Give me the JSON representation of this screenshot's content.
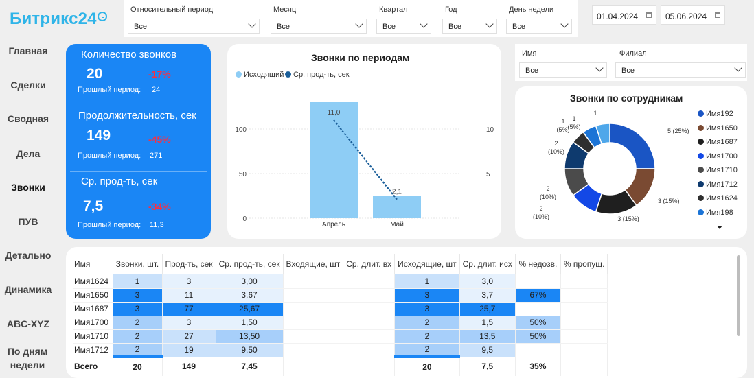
{
  "logo": "Битрикс24",
  "filters": [
    {
      "label": "Относительный период",
      "value": "Все"
    },
    {
      "label": "Месяц",
      "value": "Все"
    },
    {
      "label": "Квартал",
      "value": "Все"
    },
    {
      "label": "Год",
      "value": "Все"
    },
    {
      "label": "День недели",
      "value": "Все"
    }
  ],
  "date_from": "01.04.2024",
  "date_to": "05.06.2024",
  "nav": [
    "Главная",
    "Сделки",
    "Сводная",
    "Дела",
    "Звонки",
    "ПУВ",
    "Детально",
    "Динамика",
    "ABC-XYZ",
    "По дням недели"
  ],
  "nav_active": "Звонки",
  "kpi": [
    {
      "title": "Количество звонков",
      "value": "20",
      "change": "-17%",
      "prev_label": "Прошлый период:",
      "prev_value": "24"
    },
    {
      "title": "Продолжительность, сек",
      "value": "149",
      "change": "-45%",
      "prev_label": "Прошлый период:",
      "prev_value": "271"
    },
    {
      "title": "Ср. прод-ть, сек",
      "value": "7,5",
      "change": "-34%",
      "prev_label": "Прошлый период:",
      "prev_value": "11,3"
    }
  ],
  "chart_data": [
    {
      "type": "bar",
      "title": "Звонки по периодам",
      "categories": [
        "Апрель",
        "Май"
      ],
      "series": [
        {
          "name": "Исходящий",
          "values": [
            11.0,
            2.1
          ],
          "color": "#8ecdf5"
        },
        {
          "name": "Ср. прод-ть, сек",
          "values": [
            11.0,
            2.1
          ],
          "color": "#1a5e99"
        }
      ],
      "y_ticks": [
        "0",
        "50",
        "100"
      ],
      "y2_ticks": [
        "5",
        "10"
      ],
      "data_labels": [
        "11,0",
        "2,1"
      ],
      "legend": "top-left"
    },
    {
      "type": "pie",
      "title": "Звонки по сотрудникам",
      "slices": [
        {
          "name": "Имя192",
          "value": 5,
          "label": "5 (25%)",
          "color": "#1a55c4"
        },
        {
          "name": "Имя1650",
          "value": 3,
          "label": "3 (15%)",
          "color": "#7a4a32"
        },
        {
          "name": "Имя1687",
          "value": 3,
          "label": "3 (15%)",
          "color": "#1f1f1f"
        },
        {
          "name": "Имя1700",
          "value": 2,
          "label": "2 (10%)",
          "color": "#1348e6"
        },
        {
          "name": "Имя1710",
          "value": 2,
          "label": "2 (10%)",
          "color": "#4b4b4b"
        },
        {
          "name": "Имя1712",
          "value": 2,
          "label": "2 (10%)",
          "color": "#0e3a6e"
        },
        {
          "name": "Имя1624",
          "value": 1,
          "label": "1 (5%)",
          "color": "#2f2f2f"
        },
        {
          "name": "Имя198",
          "value": 1,
          "label": "1 (5%)",
          "color": "#1b74d6"
        },
        {
          "name": "",
          "value": 1,
          "label": "1",
          "color": "#4ea7ea"
        }
      ],
      "legend": "right"
    }
  ],
  "name_filter": {
    "label": "Имя",
    "value": "Все"
  },
  "branch_filter": {
    "label": "Филиал",
    "value": "Все"
  },
  "table": {
    "headers": [
      "Имя",
      "Звонки, шт.",
      "Прод-ть, сек",
      "Ср. прод-ть, сек",
      "Входящие, шт",
      "Ср. длит. вх",
      "Исходящие, шт",
      "Ср. длит. исх",
      "% недозв.",
      "% пропущ."
    ],
    "rows": [
      [
        "Имя1624",
        "1",
        "3",
        "3,00",
        "",
        "",
        "1",
        "3,0",
        "",
        ""
      ],
      [
        "Имя1650",
        "3",
        "11",
        "3,67",
        "",
        "",
        "3",
        "3,7",
        "67%",
        ""
      ],
      [
        "Имя1687",
        "3",
        "77",
        "25,67",
        "",
        "",
        "3",
        "25,7",
        "",
        ""
      ],
      [
        "Имя1700",
        "2",
        "3",
        "1,50",
        "",
        "",
        "2",
        "1,5",
        "50%",
        ""
      ],
      [
        "Имя1710",
        "2",
        "27",
        "13,50",
        "",
        "",
        "2",
        "13,5",
        "50%",
        ""
      ],
      [
        "Имя1712",
        "2",
        "19",
        "9,50",
        "",
        "",
        "2",
        "9,5",
        "",
        ""
      ]
    ],
    "total": [
      "Всего",
      "20",
      "149",
      "7,45",
      "",
      "",
      "20",
      "7,5",
      "35%",
      ""
    ]
  }
}
